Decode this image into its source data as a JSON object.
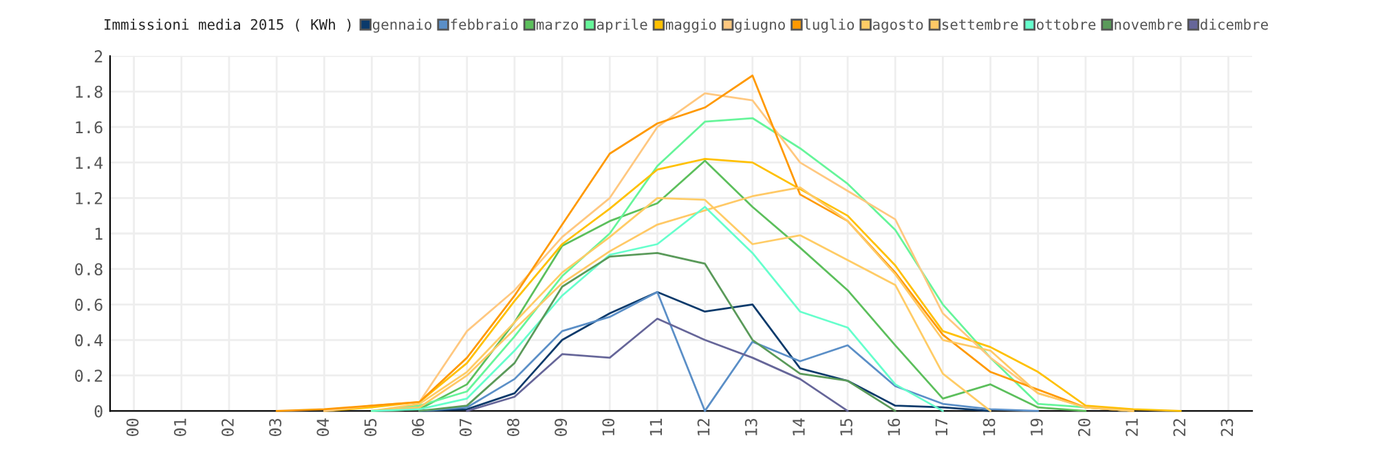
{
  "chart_data": {
    "type": "line",
    "title": "Immissioni media 2015 ( KWh )",
    "categories": [
      "00",
      "01",
      "02",
      "03",
      "04",
      "05",
      "06",
      "07",
      "08",
      "09",
      "10",
      "11",
      "12",
      "13",
      "14",
      "15",
      "16",
      "17",
      "18",
      "19",
      "20",
      "21",
      "22",
      "23"
    ],
    "series": [
      {
        "name": "gennaio",
        "color": "#0b3a6b",
        "values": [
          null,
          null,
          null,
          null,
          null,
          null,
          0,
          0.01,
          0.1,
          0.4,
          0.55,
          0.67,
          0.56,
          0.6,
          0.24,
          0.17,
          0.03,
          0.02,
          0,
          null,
          null,
          null,
          null,
          null
        ]
      },
      {
        "name": "febbraio",
        "color": "#5b8fc7",
        "values": [
          null,
          null,
          null,
          null,
          null,
          null,
          0,
          0.02,
          0.18,
          0.45,
          0.53,
          0.67,
          0,
          0.39,
          0.28,
          0.37,
          0.14,
          0.04,
          0.01,
          0,
          null,
          null,
          null,
          null
        ]
      },
      {
        "name": "marzo",
        "color": "#5cbf5c",
        "values": [
          null,
          null,
          null,
          null,
          null,
          0,
          0.01,
          0.15,
          0.5,
          0.93,
          1.07,
          1.17,
          1.41,
          1.15,
          0.92,
          0.68,
          0.37,
          0.07,
          0.15,
          0.02,
          0,
          null,
          null,
          null
        ]
      },
      {
        "name": "aprile",
        "color": "#66f59a",
        "values": [
          null,
          null,
          null,
          null,
          null,
          0,
          0.03,
          0.11,
          0.42,
          0.76,
          1.0,
          1.38,
          1.63,
          1.65,
          1.48,
          1.28,
          1.02,
          0.6,
          0.3,
          0.04,
          0.02,
          0,
          null,
          null
        ]
      },
      {
        "name": "maggio",
        "color": "#ffc000",
        "values": [
          null,
          null,
          null,
          null,
          0,
          0.02,
          0.05,
          0.27,
          0.62,
          0.94,
          1.14,
          1.36,
          1.42,
          1.4,
          1.25,
          1.1,
          0.82,
          0.45,
          0.36,
          0.22,
          0.03,
          0.01,
          0,
          null
        ]
      },
      {
        "name": "giugno",
        "color": "#ffc880",
        "values": [
          null,
          null,
          null,
          null,
          0,
          0.03,
          0.05,
          0.45,
          0.68,
          0.98,
          1.2,
          1.6,
          1.79,
          1.75,
          1.4,
          1.24,
          1.08,
          0.55,
          0.3,
          0.1,
          0.02,
          0,
          null,
          null
        ]
      },
      {
        "name": "luglio",
        "color": "#ff9900",
        "values": [
          null,
          null,
          null,
          0,
          0.01,
          0.03,
          0.05,
          0.3,
          0.65,
          1.05,
          1.45,
          1.62,
          1.71,
          1.89,
          1.22,
          1.07,
          0.78,
          0.43,
          0.22,
          0.12,
          0.02,
          0,
          null,
          null
        ]
      },
      {
        "name": "agosto",
        "color": "#ffcc66",
        "values": [
          null,
          null,
          null,
          null,
          null,
          0,
          0.04,
          0.22,
          0.5,
          0.78,
          0.98,
          1.2,
          1.19,
          0.94,
          0.99,
          0.85,
          0.71,
          0.21,
          0,
          null,
          null,
          null,
          null,
          null
        ]
      },
      {
        "name": "settembre",
        "color": "#ffc966",
        "values": [
          null,
          null,
          null,
          null,
          null,
          0,
          0.02,
          0.2,
          0.46,
          0.72,
          0.9,
          1.05,
          1.13,
          1.21,
          1.26,
          1.07,
          0.77,
          0.4,
          0.34,
          0.1,
          0.02,
          0,
          null,
          null
        ]
      },
      {
        "name": "ottobre",
        "color": "#66ffcc",
        "values": [
          null,
          null,
          null,
          null,
          null,
          0,
          0.01,
          0.07,
          0.34,
          0.65,
          0.88,
          0.94,
          1.15,
          0.89,
          0.56,
          0.47,
          0.15,
          0,
          null,
          null,
          null,
          null,
          null,
          null
        ]
      },
      {
        "name": "novembre",
        "color": "#5a9a5a",
        "values": [
          null,
          null,
          null,
          null,
          null,
          null,
          0,
          0.03,
          0.27,
          0.7,
          0.87,
          0.89,
          0.83,
          0.4,
          0.21,
          0.17,
          0,
          null,
          null,
          null,
          null,
          null,
          null,
          null
        ]
      },
      {
        "name": "dicembre",
        "color": "#666699",
        "values": [
          null,
          null,
          null,
          null,
          null,
          null,
          null,
          0,
          0.08,
          0.32,
          0.3,
          0.52,
          0.4,
          0.3,
          0.18,
          0,
          null,
          null,
          null,
          null,
          null,
          null,
          null,
          null
        ]
      }
    ],
    "ylim": [
      0,
      2
    ],
    "yticks": [
      0,
      0.2,
      0.4,
      0.6,
      0.8,
      1,
      1.2,
      1.4,
      1.6,
      1.8,
      2
    ],
    "grid": true,
    "legend": "top",
    "marker": "none",
    "line_style": "solid"
  }
}
